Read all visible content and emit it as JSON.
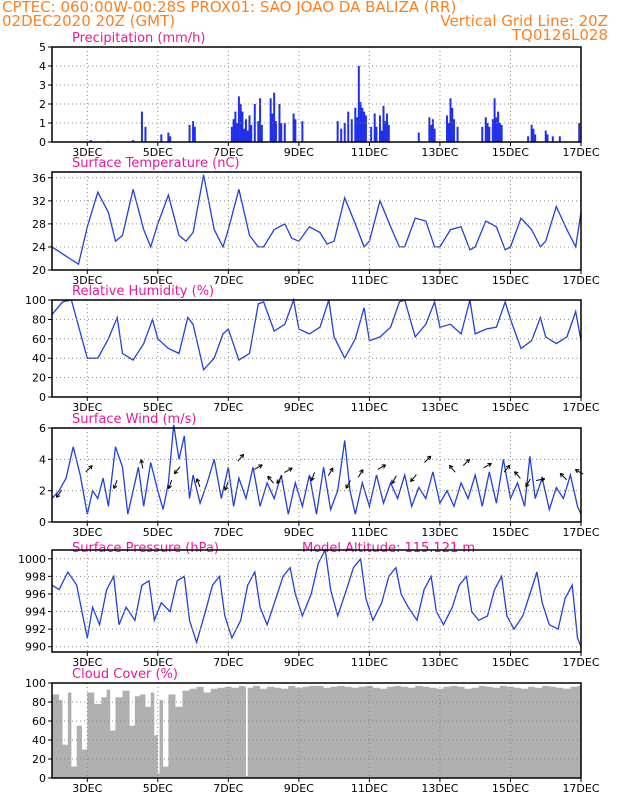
{
  "header": {
    "line1_left": "CPTEC:   060:00W-00:28S   PROX01: SAO JOAO DA BALIZA (RR)",
    "line2_left": "02DEC2020 20Z (GMT)",
    "line2_right": "Vertical Grid Line: 20Z",
    "line3_right": "TQ0126L028"
  },
  "x_ticks": [
    "3DEC",
    "5DEC",
    "7DEC",
    "9DEC",
    "11DEC",
    "13DEC",
    "15DEC",
    "17DEC"
  ],
  "chart_data": [
    {
      "type": "bar",
      "title": "Precipitation (mm/h)",
      "ylim": [
        0,
        5
      ],
      "yticks": [
        "0",
        "1",
        "2",
        "3",
        "4",
        "5"
      ],
      "x_range_days": [
        2.0,
        17.0
      ],
      "bars": [
        [
          3.1,
          0.1
        ],
        [
          3.6,
          0.05
        ],
        [
          4.3,
          0.1
        ],
        [
          4.55,
          1.6
        ],
        [
          4.65,
          0.8
        ],
        [
          5.1,
          0.4
        ],
        [
          5.3,
          0.5
        ],
        [
          5.35,
          0.3
        ],
        [
          5.9,
          0.9
        ],
        [
          6.0,
          1.1
        ],
        [
          6.05,
          0.8
        ],
        [
          7.1,
          0.8
        ],
        [
          7.15,
          1.2
        ],
        [
          7.2,
          1.6
        ],
        [
          7.25,
          1.0
        ],
        [
          7.3,
          2.4
        ],
        [
          7.35,
          2.0
        ],
        [
          7.4,
          1.6
        ],
        [
          7.45,
          0.7
        ],
        [
          7.5,
          1.2
        ],
        [
          7.55,
          0.6
        ],
        [
          7.6,
          1.4
        ],
        [
          7.65,
          0.9
        ],
        [
          7.75,
          2.0
        ],
        [
          7.85,
          1.1
        ],
        [
          7.9,
          2.3
        ],
        [
          7.95,
          0.9
        ],
        [
          8.2,
          2.3
        ],
        [
          8.25,
          1.5
        ],
        [
          8.3,
          2.6
        ],
        [
          8.35,
          1.1
        ],
        [
          8.45,
          2.0
        ],
        [
          8.5,
          1.0
        ],
        [
          8.6,
          1.0
        ],
        [
          8.85,
          1.5
        ],
        [
          8.9,
          1.2
        ],
        [
          9.1,
          1.1
        ],
        [
          10.1,
          1.1
        ],
        [
          10.2,
          0.7
        ],
        [
          10.3,
          1.0
        ],
        [
          10.4,
          1.6
        ],
        [
          10.5,
          1.2
        ],
        [
          10.6,
          1.8
        ],
        [
          10.65,
          1.3
        ],
        [
          10.7,
          4.0
        ],
        [
          10.75,
          2.1
        ],
        [
          10.8,
          1.8
        ],
        [
          10.85,
          1.6
        ],
        [
          10.9,
          1.4
        ],
        [
          11.05,
          0.8
        ],
        [
          11.15,
          1.5
        ],
        [
          11.2,
          0.8
        ],
        [
          11.3,
          1.4
        ],
        [
          11.35,
          0.6
        ],
        [
          11.4,
          1.9
        ],
        [
          11.45,
          1.1
        ],
        [
          11.5,
          1.5
        ],
        [
          11.55,
          0.9
        ],
        [
          12.4,
          0.5
        ],
        [
          12.7,
          1.3
        ],
        [
          12.75,
          0.9
        ],
        [
          12.8,
          1.2
        ],
        [
          12.85,
          0.7
        ],
        [
          13.2,
          1.4
        ],
        [
          13.25,
          1.0
        ],
        [
          13.3,
          2.3
        ],
        [
          13.35,
          1.8
        ],
        [
          13.4,
          1.2
        ],
        [
          13.5,
          0.8
        ],
        [
          14.2,
          0.8
        ],
        [
          14.3,
          1.3
        ],
        [
          14.35,
          1.0
        ],
        [
          14.4,
          0.8
        ],
        [
          14.5,
          1.2
        ],
        [
          14.55,
          2.3
        ],
        [
          14.6,
          1.3
        ],
        [
          14.65,
          1.6
        ],
        [
          14.7,
          1.0
        ],
        [
          14.75,
          0.9
        ],
        [
          15.5,
          0.3
        ],
        [
          15.6,
          0.9
        ],
        [
          15.65,
          0.7
        ],
        [
          15.7,
          0.4
        ],
        [
          16.0,
          0.6
        ],
        [
          16.05,
          0.4
        ],
        [
          16.2,
          0.3
        ],
        [
          16.4,
          0.3
        ],
        [
          16.95,
          1.0
        ]
      ]
    },
    {
      "type": "line",
      "title": "Surface Temperature (nC)",
      "ylim": [
        20,
        37
      ],
      "yticks": [
        "20",
        "24",
        "28",
        "32",
        "36"
      ],
      "x": [
        2.0,
        2.5,
        2.75,
        3.0,
        3.3,
        3.6,
        3.8,
        4.0,
        4.3,
        4.6,
        4.8,
        5.0,
        5.3,
        5.6,
        5.8,
        6.0,
        6.3,
        6.6,
        6.85,
        7.0,
        7.3,
        7.6,
        7.85,
        8.0,
        8.3,
        8.6,
        8.8,
        9.0,
        9.3,
        9.6,
        9.8,
        10.0,
        10.3,
        10.6,
        10.85,
        11.0,
        11.3,
        11.6,
        11.85,
        12.0,
        12.3,
        12.6,
        12.85,
        13.0,
        13.3,
        13.6,
        13.85,
        14.0,
        14.3,
        14.6,
        14.85,
        15.0,
        15.3,
        15.6,
        15.85,
        16.0,
        16.3,
        16.6,
        16.85,
        17.0
      ],
      "values": [
        24.0,
        22.0,
        21.0,
        27.5,
        33.5,
        30.0,
        25.0,
        26.0,
        34.0,
        27.0,
        24.0,
        28.0,
        33.0,
        26.0,
        25.0,
        26.5,
        36.5,
        27.0,
        24.0,
        27.0,
        34.0,
        26.0,
        24.0,
        24.0,
        27.0,
        28.0,
        25.5,
        25.0,
        27.5,
        26.5,
        24.5,
        25.0,
        32.5,
        28.0,
        24.0,
        25.0,
        32.0,
        27.5,
        24.0,
        24.0,
        29.0,
        28.5,
        24.0,
        24.0,
        27.0,
        27.5,
        23.5,
        24.0,
        28.5,
        27.5,
        23.5,
        24.0,
        29.0,
        27.0,
        24.0,
        25.0,
        31.0,
        27.0,
        24.0,
        30.0
      ]
    },
    {
      "type": "line",
      "title": "Relative Humidity (%)",
      "ylim": [
        0,
        100
      ],
      "yticks": [
        "0",
        "20",
        "40",
        "60",
        "80",
        "100"
      ],
      "x": [
        2.0,
        2.3,
        2.55,
        2.85,
        3.0,
        3.3,
        3.6,
        3.85,
        4.0,
        4.3,
        4.6,
        4.85,
        5.0,
        5.3,
        5.6,
        5.85,
        6.0,
        6.3,
        6.6,
        6.85,
        7.0,
        7.3,
        7.6,
        7.85,
        8.0,
        8.3,
        8.6,
        8.85,
        9.0,
        9.3,
        9.6,
        9.85,
        10.0,
        10.3,
        10.6,
        10.85,
        11.0,
        11.3,
        11.6,
        11.85,
        12.0,
        12.3,
        12.6,
        12.85,
        13.0,
        13.3,
        13.6,
        13.85,
        14.0,
        14.3,
        14.6,
        14.85,
        15.0,
        15.3,
        15.6,
        15.85,
        16.0,
        16.3,
        16.6,
        16.85,
        17.0
      ],
      "values": [
        85.0,
        98.0,
        100.0,
        60.0,
        40.0,
        40.0,
        60.0,
        82.0,
        45.0,
        38.0,
        55.0,
        80.0,
        60.0,
        50.0,
        45.0,
        82.0,
        75.0,
        28.0,
        40.0,
        65.0,
        70.0,
        38.0,
        45.0,
        96.0,
        98.0,
        68.0,
        75.0,
        100.0,
        70.0,
        65.0,
        72.0,
        100.0,
        62.0,
        40.0,
        60.0,
        92.0,
        58.0,
        62.0,
        72.0,
        98.0,
        100.0,
        62.0,
        75.0,
        98.0,
        72.0,
        75.0,
        65.0,
        100.0,
        65.0,
        70.0,
        72.0,
        98.0,
        80.0,
        50.0,
        58.0,
        82.0,
        62.0,
        55.0,
        62.0,
        88.0,
        58.0
      ]
    },
    {
      "type": "line",
      "title": "Surface Wind (m/s)",
      "ylim": [
        0,
        6
      ],
      "yticks": [
        "0",
        "2",
        "4",
        "6"
      ],
      "x": [
        2.0,
        2.2,
        2.4,
        2.6,
        2.8,
        3.0,
        3.15,
        3.3,
        3.45,
        3.6,
        3.8,
        4.0,
        4.15,
        4.3,
        4.45,
        4.6,
        4.8,
        5.0,
        5.15,
        5.3,
        5.45,
        5.6,
        5.75,
        5.9,
        6.0,
        6.2,
        6.4,
        6.6,
        6.8,
        7.0,
        7.15,
        7.3,
        7.5,
        7.7,
        7.9,
        8.1,
        8.3,
        8.5,
        8.7,
        8.9,
        9.1,
        9.3,
        9.5,
        9.7,
        9.9,
        10.1,
        10.3,
        10.45,
        10.6,
        10.8,
        11.0,
        11.2,
        11.4,
        11.6,
        11.8,
        12.0,
        12.2,
        12.4,
        12.6,
        12.8,
        13.0,
        13.2,
        13.4,
        13.6,
        13.8,
        14.0,
        14.2,
        14.4,
        14.6,
        14.8,
        15.0,
        15.2,
        15.4,
        15.55,
        15.7,
        15.9,
        16.1,
        16.3,
        16.5,
        16.7,
        16.9,
        17.0
      ],
      "values": [
        1.5,
        2.0,
        2.8,
        4.8,
        3.0,
        0.5,
        2.0,
        1.5,
        2.8,
        1.0,
        4.8,
        3.5,
        0.5,
        2.0,
        3.5,
        1.0,
        3.8,
        2.0,
        0.8,
        2.5,
        6.2,
        4.0,
        5.5,
        1.5,
        3.0,
        1.2,
        2.5,
        4.0,
        1.5,
        3.5,
        1.0,
        2.8,
        1.5,
        3.5,
        1.0,
        2.5,
        1.5,
        3.0,
        0.5,
        2.5,
        1.0,
        3.0,
        0.5,
        3.5,
        0.8,
        2.0,
        5.2,
        2.0,
        0.5,
        2.5,
        1.0,
        3.0,
        1.2,
        2.5,
        1.5,
        3.0,
        1.0,
        2.2,
        1.5,
        3.2,
        1.2,
        2.0,
        1.0,
        2.5,
        1.5,
        3.0,
        1.0,
        3.2,
        1.2,
        4.0,
        1.5,
        2.5,
        1.0,
        4.2,
        1.5,
        2.8,
        0.8,
        2.2,
        1.5,
        3.0,
        1.0,
        0.5
      ],
      "arrows": [
        [
          2.2,
          1.8,
          215
        ],
        [
          3.05,
          3.4,
          45
        ],
        [
          3.8,
          2.4,
          200
        ],
        [
          4.55,
          3.7,
          350
        ],
        [
          5.35,
          2.4,
          200
        ],
        [
          5.55,
          3.3,
          220
        ],
        [
          6.15,
          2.5,
          340
        ],
        [
          6.95,
          2.3,
          200
        ],
        [
          7.35,
          4.1,
          40
        ],
        [
          7.85,
          3.5,
          60
        ],
        [
          8.2,
          2.7,
          320
        ],
        [
          8.45,
          2.7,
          215
        ],
        [
          8.7,
          3.3,
          60
        ],
        [
          9.4,
          2.9,
          200
        ],
        [
          9.9,
          3.2,
          30
        ],
        [
          10.4,
          2.4,
          210
        ],
        [
          10.75,
          3.1,
          30
        ],
        [
          11.35,
          3.5,
          60
        ],
        [
          11.7,
          2.7,
          210
        ],
        [
          12.25,
          2.8,
          220
        ],
        [
          12.65,
          4.0,
          45
        ],
        [
          13.35,
          3.4,
          320
        ],
        [
          13.75,
          3.8,
          45
        ],
        [
          14.35,
          3.6,
          60
        ],
        [
          14.9,
          3.4,
          40
        ],
        [
          15.2,
          3.0,
          320
        ],
        [
          15.5,
          2.5,
          210
        ],
        [
          15.85,
          2.7,
          80
        ],
        [
          16.5,
          2.9,
          315
        ],
        [
          16.95,
          3.2,
          300
        ]
      ]
    },
    {
      "type": "line",
      "title": "Surface Pressure (hPa)",
      "annotation": "Model Altitude: 115.121 m",
      "ylim": [
        989.4,
        1001
      ],
      "yticks": [
        "990",
        "992",
        "994",
        "996",
        "998",
        "1000"
      ],
      "x": [
        2.0,
        2.2,
        2.45,
        2.7,
        2.9,
        3.0,
        3.15,
        3.35,
        3.55,
        3.75,
        3.9,
        4.1,
        4.35,
        4.55,
        4.75,
        4.9,
        5.1,
        5.35,
        5.55,
        5.75,
        5.9,
        6.1,
        6.35,
        6.55,
        6.75,
        6.9,
        7.1,
        7.35,
        7.55,
        7.75,
        7.9,
        8.1,
        8.35,
        8.55,
        8.75,
        8.9,
        9.1,
        9.35,
        9.55,
        9.75,
        9.9,
        10.1,
        10.35,
        10.55,
        10.75,
        10.9,
        11.1,
        11.35,
        11.55,
        11.75,
        11.9,
        12.1,
        12.35,
        12.55,
        12.75,
        12.9,
        13.1,
        13.35,
        13.55,
        13.75,
        13.9,
        14.1,
        14.35,
        14.55,
        14.75,
        14.9,
        15.1,
        15.35,
        15.55,
        15.75,
        15.9,
        16.1,
        16.35,
        16.55,
        16.75,
        16.9,
        17.0
      ],
      "values": [
        997.0,
        996.5,
        998.5,
        997.0,
        993.0,
        991.0,
        994.5,
        992.5,
        996.5,
        998.0,
        992.5,
        994.5,
        993.0,
        997.0,
        997.5,
        993.0,
        995.0,
        994.0,
        997.5,
        998.0,
        993.0,
        990.5,
        994.0,
        997.0,
        998.0,
        993.5,
        991.0,
        993.0,
        997.0,
        998.5,
        994.5,
        992.5,
        995.5,
        998.0,
        999.0,
        996.0,
        993.5,
        996.0,
        999.5,
        1001.0,
        996.5,
        993.5,
        996.5,
        999.0,
        1000.0,
        995.5,
        993.0,
        995.0,
        998.0,
        999.0,
        996.0,
        994.5,
        993.0,
        996.5,
        998.0,
        994.0,
        992.5,
        994.5,
        997.0,
        998.0,
        994.0,
        993.0,
        993.5,
        996.5,
        998.0,
        993.5,
        992.0,
        993.5,
        996.0,
        998.5,
        995.0,
        992.5,
        992.0,
        995.5,
        997.0,
        991.0,
        990.0
      ]
    },
    {
      "type": "area",
      "title": "Cloud Cover (%)",
      "ylim": [
        0,
        100
      ],
      "yticks": [
        "0",
        "20",
        "40",
        "60",
        "80",
        "100"
      ],
      "x": [
        2.0,
        2.2,
        2.3,
        2.45,
        2.55,
        2.7,
        2.85,
        3.0,
        3.2,
        3.4,
        3.55,
        3.65,
        3.8,
        4.0,
        4.2,
        4.35,
        4.5,
        4.65,
        4.8,
        4.9,
        5.0,
        5.05,
        5.15,
        5.3,
        5.5,
        5.7,
        5.9,
        6.1,
        6.3,
        6.5,
        6.7,
        6.9,
        7.1,
        7.3,
        7.45,
        7.5,
        7.55,
        7.7,
        7.9,
        8.1,
        8.3,
        8.5,
        8.7,
        8.9,
        9.1,
        9.3,
        9.5,
        9.7,
        9.9,
        10.1,
        10.3,
        10.5,
        10.7,
        10.9,
        11.1,
        11.3,
        11.5,
        11.7,
        11.9,
        12.1,
        12.3,
        12.5,
        12.7,
        12.9,
        13.1,
        13.3,
        13.5,
        13.7,
        13.9,
        14.1,
        14.3,
        14.5,
        14.7,
        14.9,
        15.1,
        15.3,
        15.5,
        15.7,
        15.9,
        16.1,
        16.3,
        16.5,
        16.7,
        16.9,
        17.0
      ],
      "values": [
        88,
        82,
        35,
        90,
        12,
        55,
        30,
        90,
        78,
        85,
        93,
        50,
        85,
        92,
        55,
        86,
        88,
        75,
        90,
        45,
        5,
        82,
        12,
        88,
        75,
        92,
        94,
        96,
        90,
        94,
        95,
        96,
        95,
        97,
        96,
        2,
        95,
        97,
        94,
        96,
        95,
        94,
        97,
        95,
        96,
        97,
        97,
        95,
        96,
        97,
        96,
        95,
        96,
        97,
        95,
        94,
        96,
        97,
        96,
        95,
        97,
        96,
        95,
        94,
        96,
        97,
        96,
        94,
        95,
        97,
        96,
        95,
        97,
        96,
        95,
        94,
        96,
        95,
        97,
        96,
        95,
        94,
        96,
        97,
        95
      ]
    }
  ]
}
